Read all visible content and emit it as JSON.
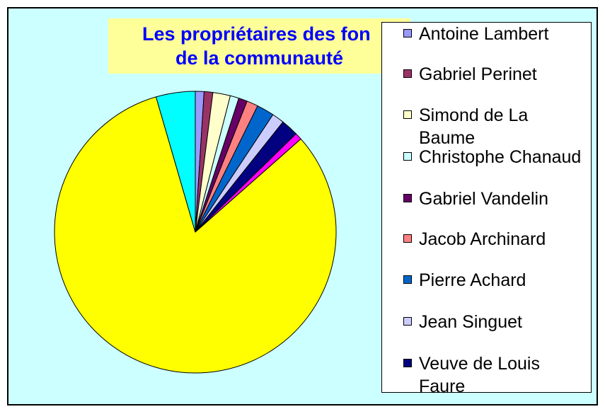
{
  "chart_data": {
    "type": "pie",
    "title_lines": [
      "Les propriétaires des fon",
      "de la communauté"
    ],
    "legend_position": "right",
    "background_color": "#ccffff",
    "title_background": "#ffff99",
    "title_color": "#0000ff",
    "series": [
      {
        "name": "Antoine Lambert",
        "value": 1.0,
        "color": "#9999ff"
      },
      {
        "name": "Gabriel Perinet",
        "value": 1.0,
        "color": "#993366"
      },
      {
        "name": "Simond de La Baume",
        "value": 2.0,
        "color": "#ffffcc"
      },
      {
        "name": "Christophe Chanaud",
        "value": 1.0,
        "color": "#ccffff"
      },
      {
        "name": "Gabriel Vandelin",
        "value": 1.0,
        "color": "#660066"
      },
      {
        "name": "Jacob Archinard",
        "value": 1.3,
        "color": "#ff8080"
      },
      {
        "name": "Pierre Achard",
        "value": 2.0,
        "color": "#0066cc"
      },
      {
        "name": "Jean Singuet",
        "value": 1.4,
        "color": "#ccccff"
      },
      {
        "name": "Veuve de Louis Faure",
        "value": 2.0,
        "color": "#000080"
      },
      {
        "name": "",
        "value": 0.8,
        "color": "#ff00ff"
      },
      {
        "name": "",
        "value": 82.0,
        "color": "#ffff00"
      },
      {
        "name": "",
        "value": 4.5,
        "color": "#00ffff"
      }
    ]
  }
}
